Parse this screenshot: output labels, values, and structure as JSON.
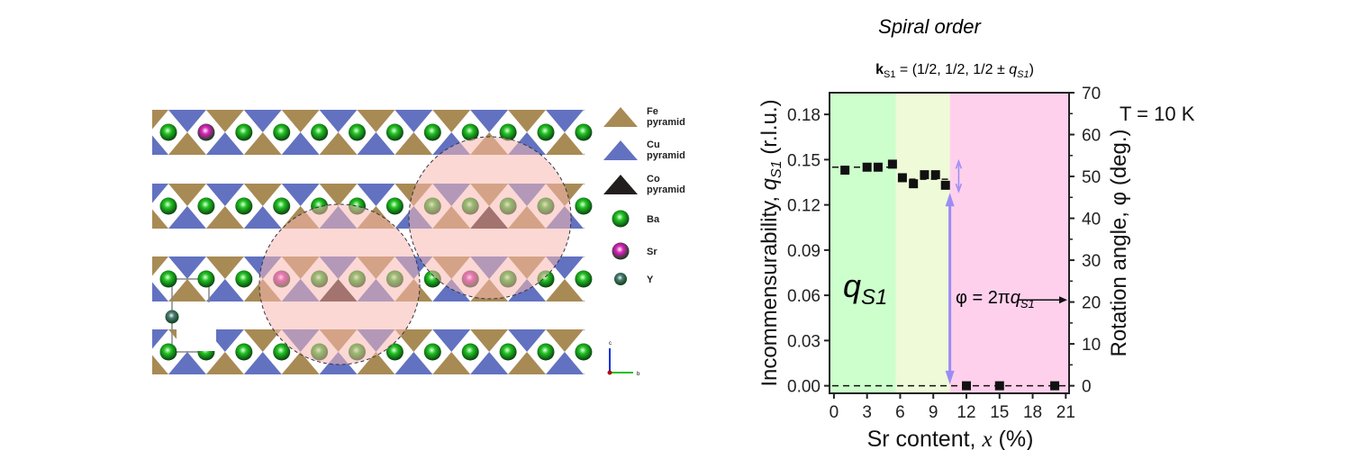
{
  "figure": {
    "title": "Spiral order",
    "subtitle": {
      "k": "k",
      "k_sub": "S1",
      "text": " = (1/2, 1/2, 1/2 ± ",
      "q": "q",
      "q_sub": "S1",
      "close": ")"
    }
  },
  "structure": {
    "legend": [
      {
        "label1": "Fe",
        "label2": "pyramid",
        "color": "#a88a55",
        "shape": "triangle"
      },
      {
        "label1": "Cu",
        "label2": "pyramid",
        "color": "#6272c0",
        "shape": "triangle"
      },
      {
        "label1": "Co",
        "label2": "pyramid",
        "color": "#231e1e",
        "shape": "triangle"
      },
      {
        "label1": "Ba",
        "label2": "",
        "color": "#22c422",
        "shape": "sphere"
      },
      {
        "label1": "Sr",
        "label2": "",
        "color": "#e020c0",
        "shape": "sphere"
      },
      {
        "label1": "Y",
        "label2": "",
        "color": "#4f7a78",
        "shape": "sphere"
      }
    ],
    "axes": {
      "c": "c",
      "b": "b"
    },
    "colors": {
      "fe": "#a88a55",
      "cu": "#6272c0",
      "co": "#3a2020",
      "ba": "#22c422",
      "sr": "#e020c0",
      "y": "#4f7a78",
      "cluster": "#f7b8b0"
    }
  },
  "chart_data": {
    "type": "scatter",
    "xlabel": "Sr content, x (%)",
    "ylabel": "Incommensurability, q_S1 (r.l.u.)",
    "ylabel_parts": {
      "a": "Incommensurability, ",
      "q": "q",
      "sub": "S1",
      "b": " (r.l.u.)"
    },
    "xlabel_parts": {
      "a": "Sr content, ",
      "x": "x",
      "b": " (%)"
    },
    "y2label": "Rotation angle, φ (deg.)",
    "xlim": [
      -0.4,
      21.3
    ],
    "ylim": [
      -0.005,
      0.1944
    ],
    "y2lim": [
      -1.8,
      70
    ],
    "xticks": [
      0,
      3,
      6,
      9,
      12,
      15,
      18,
      21
    ],
    "yticks": [
      0.0,
      0.03,
      0.06,
      0.09,
      0.12,
      0.15,
      0.18
    ],
    "ytick_labels": [
      "0.00",
      "0.03",
      "0.06",
      "0.09",
      "0.12",
      "0.15",
      "0.18"
    ],
    "y2ticks": [
      0,
      10,
      20,
      30,
      40,
      50,
      60,
      70
    ],
    "points": {
      "x": [
        1,
        3,
        4,
        5.3,
        6.2,
        7.2,
        8.2,
        9.2,
        10.1,
        12,
        15,
        20
      ],
      "y": [
        0.143,
        0.145,
        0.145,
        0.147,
        0.138,
        0.134,
        0.14,
        0.14,
        0.133,
        0.0,
        0.0,
        0.0
      ]
    },
    "regions": [
      {
        "from": -0.4,
        "to": 5.6,
        "color": "#ccffcc"
      },
      {
        "from": 5.6,
        "to": 10.5,
        "color": "#eefad8"
      },
      {
        "from": 10.5,
        "to": 21.3,
        "color": "#ffd0ec"
      }
    ],
    "fit_lines": [
      {
        "from": -0.4,
        "to": 5.6,
        "y": 0.145
      },
      {
        "from": 5.6,
        "to": 10.5,
        "y": 0.137
      },
      {
        "from": -0.4,
        "to": 21.3,
        "y": 0.0
      }
    ],
    "annotations": {
      "temperature": "T = 10 K",
      "region_label": {
        "q": "q",
        "sub": "S1"
      },
      "relation": {
        "a": "φ = 2π",
        "q": "q",
        "sub": "S1"
      }
    }
  }
}
